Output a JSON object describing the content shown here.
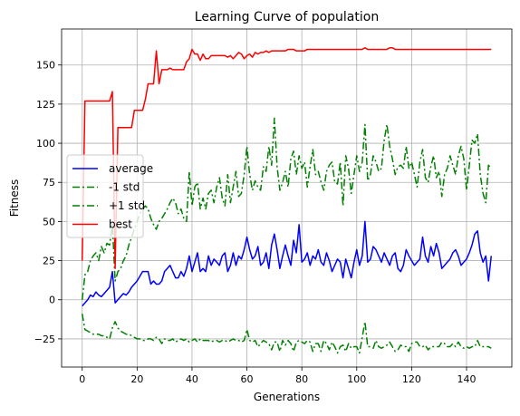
{
  "chart_data": {
    "type": "line",
    "title": "Learning Curve of population",
    "xlabel": "Generations",
    "ylabel": "Fitness",
    "xlim": [
      -7.5,
      156.5
    ],
    "ylim": [
      -43,
      173
    ],
    "x_ticks": [
      0,
      20,
      40,
      60,
      80,
      100,
      120,
      140
    ],
    "y_ticks": [
      -25,
      0,
      25,
      50,
      75,
      100,
      125,
      150
    ],
    "grid": true,
    "legend_position": "center-left",
    "series": [
      {
        "name": "average",
        "color": "#0000ff",
        "style": "solid",
        "values": [
          -4,
          -2,
          0,
          3,
          2,
          5,
          3,
          2,
          4,
          6,
          8,
          18,
          -2,
          0,
          2,
          4,
          3,
          5,
          8,
          10,
          12,
          15,
          18,
          18,
          18,
          10,
          12,
          10,
          10,
          12,
          18,
          20,
          22,
          18,
          14,
          14,
          18,
          15,
          20,
          28,
          18,
          24,
          30,
          18,
          20,
          18,
          28,
          22,
          26,
          24,
          22,
          28,
          30,
          18,
          22,
          30,
          22,
          28,
          26,
          32,
          40,
          32,
          26,
          28,
          34,
          22,
          24,
          30,
          20,
          35,
          42,
          32,
          20,
          28,
          35,
          28,
          22,
          38,
          30,
          48,
          24,
          26,
          30,
          22,
          28,
          26,
          32,
          24,
          22,
          30,
          25,
          18,
          22,
          26,
          24,
          14,
          26,
          20,
          14,
          24,
          32,
          22,
          28,
          50,
          24,
          26,
          34,
          32,
          28,
          24,
          30,
          26,
          22,
          28,
          30,
          20,
          18,
          22,
          32,
          28,
          25,
          22,
          24,
          26,
          40,
          28,
          24,
          34,
          28,
          36,
          30,
          20,
          22,
          24,
          26,
          30,
          32,
          28,
          22,
          24,
          26,
          30,
          35,
          42,
          44,
          30,
          24,
          28,
          12,
          28
        ]
      },
      {
        "name": "-1 std",
        "color": "#008000",
        "style": "dashdot",
        "values": [
          -9,
          -19,
          -20,
          -21,
          -22,
          -22,
          -22,
          -23,
          -23,
          -24,
          -25,
          -18,
          -14,
          -18,
          -20,
          -21,
          -22,
          -22,
          -23,
          -24,
          -25,
          -25,
          -26,
          -26,
          -25,
          -25,
          -26,
          -24,
          -25,
          -28,
          -25,
          -26,
          -26,
          -25,
          -27,
          -26,
          -25,
          -26,
          -25,
          -27,
          -26,
          -25,
          -27,
          -25,
          -26,
          -26,
          -26,
          -27,
          -26,
          -26,
          -27,
          -26,
          -26,
          -27,
          -26,
          -25,
          -26,
          -26,
          -27,
          -26,
          -19,
          -26,
          -27,
          -26,
          -30,
          -28,
          -26,
          -27,
          -28,
          -32,
          -27,
          -27,
          -33,
          -26,
          -29,
          -26,
          -28,
          -33,
          -27,
          -26,
          -27,
          -28,
          -26,
          -27,
          -33,
          -28,
          -28,
          -33,
          -26,
          -28,
          -32,
          -27,
          -30,
          -34,
          -30,
          -29,
          -33,
          -28,
          -31,
          -30,
          -30,
          -34,
          -24,
          -14,
          -30,
          -30,
          -31,
          -26,
          -30,
          -31,
          -30,
          -29,
          -27,
          -30,
          -33,
          -32,
          -29,
          -30,
          -30,
          -33,
          -28,
          -27,
          -27,
          -30,
          -30,
          -29,
          -32,
          -30,
          -30,
          -30,
          -30,
          -27,
          -28,
          -30,
          -30,
          -28,
          -30,
          -27,
          -30,
          -31,
          -30,
          -31,
          -30,
          -30,
          -26,
          -30,
          -30,
          -30,
          -30,
          -31
        ]
      },
      {
        "name": "+1 std",
        "color": "#008000",
        "style": "dashdot",
        "values": [
          0,
          16,
          18,
          25,
          28,
          30,
          25,
          34,
          30,
          36,
          35,
          48,
          12,
          18,
          20,
          25,
          28,
          35,
          40,
          45,
          50,
          55,
          58,
          60,
          58,
          52,
          48,
          45,
          50,
          52,
          55,
          58,
          62,
          65,
          62,
          55,
          58,
          52,
          50,
          82,
          60,
          72,
          75,
          58,
          65,
          58,
          68,
          70,
          62,
          72,
          78,
          65,
          60,
          80,
          62,
          72,
          82,
          66,
          68,
          80,
          98,
          80,
          70,
          76,
          72,
          70,
          85,
          82,
          98,
          86,
          116,
          85,
          70,
          75,
          82,
          72,
          90,
          95,
          80,
          92,
          84,
          88,
          72,
          85,
          96,
          80,
          82,
          75,
          70,
          82,
          86,
          88,
          75,
          74,
          88,
          60,
          92,
          84,
          68,
          80,
          92,
          82,
          88,
          112,
          76,
          80,
          92,
          88,
          82,
          84,
          102,
          112,
          98,
          90,
          80,
          85,
          86,
          84,
          98,
          84,
          88,
          80,
          72,
          88,
          96,
          78,
          75,
          85,
          92,
          78,
          82,
          66,
          80,
          84,
          92,
          86,
          80,
          92,
          98,
          90,
          70,
          86,
          102,
          100,
          106,
          80,
          68,
          62,
          86,
          84
        ]
      },
      {
        "name": "best",
        "color": "#ff0000",
        "style": "solid",
        "values": [
          25,
          127,
          127,
          127,
          127,
          127,
          127,
          127,
          127,
          127,
          127,
          133,
          20,
          110,
          110,
          110,
          110,
          110,
          110,
          121,
          121,
          121,
          121,
          128,
          138,
          138,
          138,
          159,
          138,
          147,
          147,
          147,
          148,
          147,
          147,
          147,
          147,
          147,
          152,
          154,
          160,
          157,
          157,
          153,
          157,
          154,
          154,
          156,
          156,
          156,
          156,
          156,
          156,
          155,
          156,
          154,
          156,
          158,
          157,
          154,
          156,
          157,
          155,
          158,
          157,
          158,
          158,
          159,
          158,
          159,
          159,
          159,
          159,
          159,
          159,
          160,
          160,
          160,
          159,
          159,
          159,
          159,
          160,
          160,
          160,
          160,
          160,
          160,
          160,
          160,
          160,
          160,
          160,
          160,
          160,
          160,
          160,
          160,
          160,
          160,
          160,
          160,
          160,
          161,
          160,
          160,
          160,
          160,
          160,
          160,
          160,
          160,
          161,
          161,
          160,
          160,
          160,
          160,
          160,
          160,
          160,
          160,
          160,
          160,
          160,
          160,
          160,
          160,
          160,
          160,
          160,
          160,
          160,
          160,
          160,
          160,
          160,
          160,
          160,
          160,
          160,
          160,
          160,
          160,
          160,
          160,
          160,
          160,
          160,
          160
        ]
      }
    ]
  }
}
